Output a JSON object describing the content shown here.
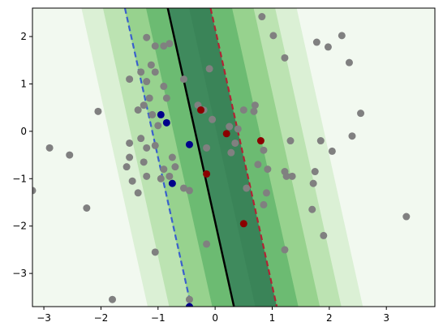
{
  "chart_data": {
    "type": "scatter",
    "title": "",
    "xlabel": "",
    "ylabel": "",
    "xlim": [
      -3.2,
      3.85
    ],
    "ylim": [
      -3.7,
      2.6
    ],
    "grid": false,
    "xticks": [
      -3,
      -2,
      -1,
      0,
      1,
      2,
      3
    ],
    "yticks": [
      -3,
      -2,
      -1,
      0,
      1,
      2
    ],
    "xtick_labels": [
      "−3",
      "−2",
      "−1",
      "0",
      "1",
      "2",
      "3"
    ],
    "ytick_labels": [
      "−3",
      "−2",
      "−1",
      "0",
      "1",
      "2"
    ],
    "decision_boundary": {
      "color": "#000000",
      "style": "solid",
      "points": [
        [
          -0.83,
          2.6
        ],
        [
          0.33,
          -3.7
        ]
      ]
    },
    "margin_lines": [
      {
        "name": "negative-margin",
        "color": "#3a5fcd",
        "style": "dashed",
        "points": [
          [
            -1.58,
            2.6
          ],
          [
            -0.42,
            -3.7
          ]
        ]
      },
      {
        "name": "positive-margin",
        "color": "#b22234",
        "style": "dashed",
        "points": [
          [
            -0.08,
            2.6
          ],
          [
            1.08,
            -3.7
          ]
        ]
      }
    ],
    "contour_bands": [
      {
        "offset_low": -100,
        "offset_high": -5.2,
        "color": "#f2f9f0"
      },
      {
        "offset_low": -5.2,
        "offset_high": -3.9,
        "color": "#dbf0d5"
      },
      {
        "offset_low": -3.9,
        "offset_high": -2.6,
        "color": "#bce3b2"
      },
      {
        "offset_low": -2.6,
        "offset_high": -1.3,
        "color": "#97d28e"
      },
      {
        "offset_low": -1.3,
        "offset_high": 0.0,
        "color": "#6cbb72"
      },
      {
        "offset_low": 0.0,
        "offset_high": 1.3,
        "color": "#3f8a5d"
      },
      {
        "offset_low": 1.3,
        "offset_high": 2.6,
        "color": "#3a8458"
      },
      {
        "offset_low": 2.6,
        "offset_high": 3.9,
        "color": "#6cbb72"
      },
      {
        "offset_low": 3.9,
        "offset_high": 5.2,
        "color": "#97d28e"
      },
      {
        "offset_low": 5.2,
        "offset_high": 6.5,
        "color": "#bce3b2"
      },
      {
        "offset_low": 6.5,
        "offset_high": 7.8,
        "color": "#dbf0d5"
      },
      {
        "offset_low": 7.8,
        "offset_high": 100,
        "color": "#f2f9f0"
      }
    ],
    "series": [
      {
        "color": "#808080",
        "points": [
          [
            0.82,
            2.42
          ],
          [
            1.02,
            2.02
          ],
          [
            1.78,
            1.88
          ],
          [
            1.98,
            1.78
          ],
          [
            2.22,
            2.02
          ],
          [
            2.35,
            1.45
          ],
          [
            1.22,
            1.55
          ],
          [
            -1.2,
            1.98
          ],
          [
            -1.05,
            1.8
          ],
          [
            -0.9,
            1.8
          ],
          [
            -0.8,
            1.85
          ],
          [
            -1.3,
            1.25
          ],
          [
            -1.12,
            1.4
          ],
          [
            -1.05,
            1.25
          ],
          [
            -1.2,
            1.05
          ],
          [
            -1.5,
            1.1
          ],
          [
            -0.9,
            0.95
          ],
          [
            -0.55,
            1.1
          ],
          [
            -0.1,
            1.32
          ],
          [
            -1.15,
            0.7
          ],
          [
            -1.25,
            0.55
          ],
          [
            -1.35,
            0.45
          ],
          [
            -1.1,
            0.35
          ],
          [
            -0.85,
            0.7
          ],
          [
            -0.3,
            0.55
          ],
          [
            -0.2,
            0.45
          ],
          [
            -0.05,
            0.25
          ],
          [
            0.5,
            0.45
          ],
          [
            0.7,
            0.55
          ],
          [
            0.68,
            0.42
          ],
          [
            0.4,
            0.05
          ],
          [
            0.25,
            0.1
          ],
          [
            -1.0,
            0.12
          ],
          [
            -1.5,
            -0.25
          ],
          [
            -1.3,
            -0.15
          ],
          [
            -1.2,
            -0.35
          ],
          [
            -1.5,
            -0.55
          ],
          [
            -1.05,
            -0.3
          ],
          [
            -1.25,
            -0.65
          ],
          [
            -0.9,
            -0.8
          ],
          [
            -0.75,
            -0.55
          ],
          [
            -1.55,
            -0.75
          ],
          [
            -1.45,
            -1.05
          ],
          [
            -1.35,
            -1.3
          ],
          [
            -1.2,
            -0.95
          ],
          [
            -0.95,
            -1.0
          ],
          [
            -0.7,
            -0.75
          ],
          [
            -0.8,
            -0.95
          ],
          [
            -0.55,
            -1.2
          ],
          [
            -0.45,
            -1.25
          ],
          [
            -0.15,
            -0.35
          ],
          [
            0.35,
            -0.25
          ],
          [
            0.28,
            -0.45
          ],
          [
            0.55,
            -1.2
          ],
          [
            0.85,
            -0.4
          ],
          [
            0.75,
            -0.7
          ],
          [
            0.92,
            -0.8
          ],
          [
            0.9,
            -1.3
          ],
          [
            0.85,
            -1.55
          ],
          [
            1.22,
            -0.85
          ],
          [
            1.25,
            -0.95
          ],
          [
            1.35,
            -0.95
          ],
          [
            1.32,
            -0.2
          ],
          [
            1.85,
            -0.2
          ],
          [
            2.05,
            -0.42
          ],
          [
            2.4,
            -0.1
          ],
          [
            2.55,
            0.38
          ],
          [
            1.75,
            -0.85
          ],
          [
            1.72,
            -1.1
          ],
          [
            1.7,
            -1.65
          ],
          [
            1.9,
            -2.2
          ],
          [
            1.22,
            -2.5
          ],
          [
            3.35,
            -1.8
          ],
          [
            -2.9,
            -0.35
          ],
          [
            -2.55,
            -0.5
          ],
          [
            -2.05,
            0.42
          ],
          [
            -2.25,
            -1.62
          ],
          [
            -1.8,
            -3.55
          ],
          [
            -3.2,
            -1.25
          ],
          [
            -1.05,
            -2.55
          ],
          [
            -0.15,
            -2.38
          ],
          [
            -0.45,
            -3.55
          ]
        ]
      },
      {
        "color": "#00008b",
        "points": [
          [
            -0.95,
            0.35
          ],
          [
            -0.85,
            0.18
          ],
          [
            -0.45,
            -0.28
          ],
          [
            -0.75,
            -1.1
          ],
          [
            -0.45,
            -3.7
          ]
        ]
      },
      {
        "color": "#8b0000",
        "points": [
          [
            -0.25,
            0.45
          ],
          [
            0.2,
            -0.05
          ],
          [
            0.8,
            -0.2
          ],
          [
            -0.15,
            -0.9
          ],
          [
            0.5,
            -1.95
          ]
        ]
      }
    ]
  }
}
